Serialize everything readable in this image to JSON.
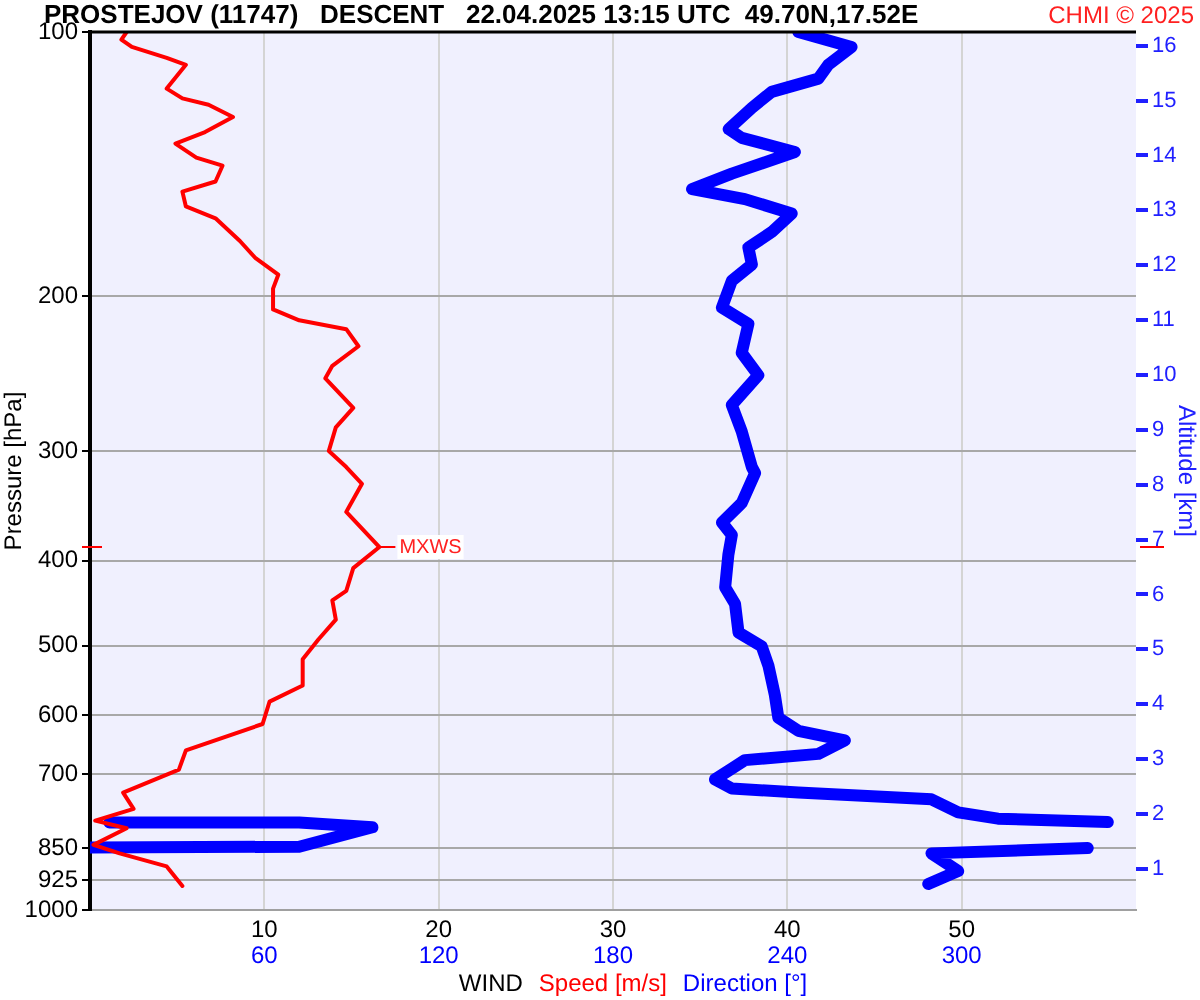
{
  "chart_data": {
    "type": "line",
    "title": "PROSTEJOV (11747)   DESCENT   22.04.2025 13:15 UTC  49.70N,17.52E",
    "xlabel": "WIND",
    "ylabel": "Pressure [hPa]",
    "y2label": "Altitude [km]",
    "annotations": [
      "CHMI © 2025",
      {
        "text": "MXWS",
        "x": 16.6,
        "y": 386
      }
    ],
    "series": [
      {
        "name": "Speed [m/s]",
        "color": "#ff0000",
        "x": [
          2.1,
          1.8,
          2.4,
          4.4,
          5.5,
          4.4,
          5.3,
          6.8,
          8.2,
          6.6,
          4.9,
          6.1,
          7.6,
          7.2,
          5.3,
          5.5,
          7.2,
          8.6,
          9.5,
          10.8,
          10.5,
          10.5,
          12.0,
          14.7,
          15.4,
          13.9,
          13.5,
          15.1,
          14.1,
          13.7,
          14.7,
          15.6,
          14.7,
          16.6,
          15.1,
          14.7,
          13.9,
          14.1,
          13.1,
          12.2,
          12.2,
          10.3,
          9.9,
          5.5,
          5.1,
          1.9,
          2.5,
          0.3,
          2.1,
          0.2,
          1.7,
          4.4,
          5.3
        ],
        "values": [
          100,
          102,
          104,
          107,
          109,
          116,
          119,
          121,
          125,
          130,
          134,
          139,
          142,
          148,
          152,
          158,
          163,
          173,
          181,
          189,
          196,
          207,
          213,
          218,
          228,
          240,
          248,
          268,
          282,
          300,
          313,
          327,
          352,
          386,
          408,
          433,
          444,
          467,
          492,
          518,
          555,
          579,
          614,
          658,
          692,
          735,
          767,
          791,
          807,
          843,
          862,
          892,
          939
        ]
      },
      {
        "name": "Direction [°]",
        "color": "#0000ff",
        "axis": "x2",
        "x": [
          243.8,
          262.1,
          254.1,
          250.7,
          234.6,
          227.8,
          219.8,
          224.3,
          242.6,
          220.9,
          207.2,
          225.4,
          241.5,
          234.6,
          226.6,
          227.8,
          220.9,
          217.5,
          226.6,
          224.3,
          230.0,
          220.9,
          224.3,
          227.8,
          228.9,
          224.3,
          217.5,
          220.9,
          219.7,
          218.6,
          222.0,
          223.2,
          231.2,
          233.5,
          235.7,
          236.9,
          243.8,
          259.8,
          250.7,
          225.4,
          215.1,
          220.9,
          243.8,
          289.6,
          298.8,
          312.5,
          350.3,
          null,
          6.7,
          72.0,
          97.2,
          72.0,
          0,
          null,
          343.4,
          289.6,
          298.8,
          288.5
        ],
        "values": [
          100,
          104,
          109,
          113,
          117,
          122,
          129,
          132,
          137,
          145,
          151,
          155,
          161,
          169,
          176,
          184,
          192,
          206,
          215,
          232,
          246,
          266,
          285,
          313,
          318,
          344,
          362,
          374,
          394,
          429,
          448,
          483,
          501,
          527,
          569,
          604,
          625,
          641,
          664,
          675,
          710,
          727,
          735,
          748,
          774,
          787,
          794,
          null,
          795,
          795,
          805,
          847,
          849,
          null,
          850,
          862,
          903,
          934
        ]
      }
    ],
    "xlim": [
      0,
      60
    ],
    "xticks": [
      10,
      20,
      30,
      40,
      50
    ],
    "x2lim": [
      0,
      360
    ],
    "x2ticks": [
      60,
      120,
      180,
      240,
      300
    ],
    "ylim": [
      1000,
      100
    ],
    "yticks": [
      100,
      200,
      300,
      400,
      500,
      600,
      700,
      850,
      925,
      1000
    ],
    "y2lim": [
      0.25,
      16.25
    ],
    "y2ticks": [
      1,
      2,
      3,
      4,
      5,
      6,
      7,
      8,
      9,
      10,
      11,
      12,
      13,
      14,
      15,
      16
    ],
    "log": "y",
    "grid": true,
    "legend": "bottom"
  }
}
